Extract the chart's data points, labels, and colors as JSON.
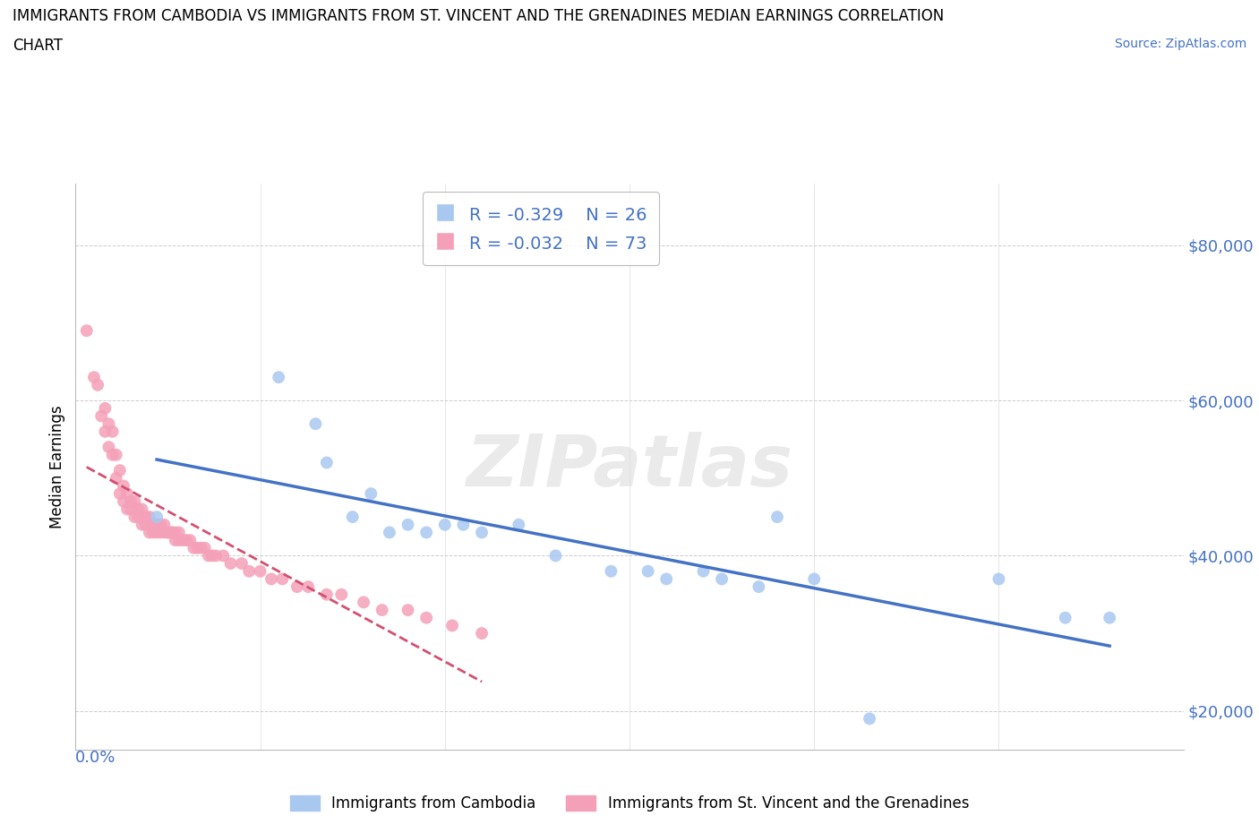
{
  "title_line1": "IMMIGRANTS FROM CAMBODIA VS IMMIGRANTS FROM ST. VINCENT AND THE GRENADINES MEDIAN EARNINGS CORRELATION",
  "title_line2": "CHART",
  "source_text": "Source: ZipAtlas.com",
  "ylabel": "Median Earnings",
  "yticks": [
    20000,
    40000,
    60000,
    80000
  ],
  "ytick_labels": [
    "$20,000",
    "$40,000",
    "$60,000",
    "$80,000"
  ],
  "xlim": [
    0.0,
    0.3
  ],
  "ylim": [
    15000,
    88000
  ],
  "R_cambodia": -0.329,
  "N_cambodia": 26,
  "R_svg": -0.032,
  "N_svg": 73,
  "color_cambodia": "#a8c8f0",
  "color_svg": "#f4a0b8",
  "trendline_cambodia_color": "#4472c4",
  "trendline_svg_color": "#d45070",
  "watermark": "ZIPatlas",
  "scatter_cambodia_x": [
    0.022,
    0.055,
    0.065,
    0.068,
    0.075,
    0.08,
    0.085,
    0.09,
    0.095,
    0.1,
    0.105,
    0.11,
    0.12,
    0.13,
    0.145,
    0.155,
    0.16,
    0.17,
    0.175,
    0.185,
    0.19,
    0.2,
    0.215,
    0.25,
    0.268,
    0.28
  ],
  "scatter_cambodia_y": [
    45000,
    63000,
    57000,
    52000,
    45000,
    48000,
    43000,
    44000,
    43000,
    44000,
    44000,
    43000,
    44000,
    40000,
    38000,
    38000,
    37000,
    38000,
    37000,
    36000,
    45000,
    37000,
    19000,
    37000,
    32000,
    32000
  ],
  "scatter_svg_x": [
    0.003,
    0.005,
    0.006,
    0.007,
    0.008,
    0.008,
    0.009,
    0.009,
    0.01,
    0.01,
    0.011,
    0.011,
    0.012,
    0.012,
    0.013,
    0.013,
    0.014,
    0.014,
    0.015,
    0.015,
    0.016,
    0.016,
    0.017,
    0.017,
    0.018,
    0.018,
    0.019,
    0.019,
    0.02,
    0.02,
    0.021,
    0.021,
    0.022,
    0.022,
    0.023,
    0.023,
    0.024,
    0.024,
    0.025,
    0.025,
    0.026,
    0.026,
    0.027,
    0.027,
    0.028,
    0.028,
    0.029,
    0.03,
    0.031,
    0.032,
    0.033,
    0.034,
    0.035,
    0.036,
    0.037,
    0.038,
    0.04,
    0.042,
    0.045,
    0.047,
    0.05,
    0.053,
    0.056,
    0.06,
    0.063,
    0.068,
    0.072,
    0.078,
    0.083,
    0.09,
    0.095,
    0.102,
    0.11
  ],
  "scatter_svg_y": [
    69000,
    63000,
    62000,
    58000,
    56000,
    59000,
    54000,
    57000,
    53000,
    56000,
    50000,
    53000,
    48000,
    51000,
    47000,
    49000,
    46000,
    48000,
    46000,
    47000,
    45000,
    47000,
    45000,
    46000,
    44000,
    46000,
    44000,
    45000,
    43000,
    45000,
    43000,
    44000,
    43000,
    44000,
    43000,
    44000,
    43000,
    44000,
    43000,
    43000,
    43000,
    43000,
    42000,
    43000,
    42000,
    43000,
    42000,
    42000,
    42000,
    41000,
    41000,
    41000,
    41000,
    40000,
    40000,
    40000,
    40000,
    39000,
    39000,
    38000,
    38000,
    37000,
    37000,
    36000,
    36000,
    35000,
    35000,
    34000,
    33000,
    33000,
    32000,
    31000,
    30000
  ]
}
